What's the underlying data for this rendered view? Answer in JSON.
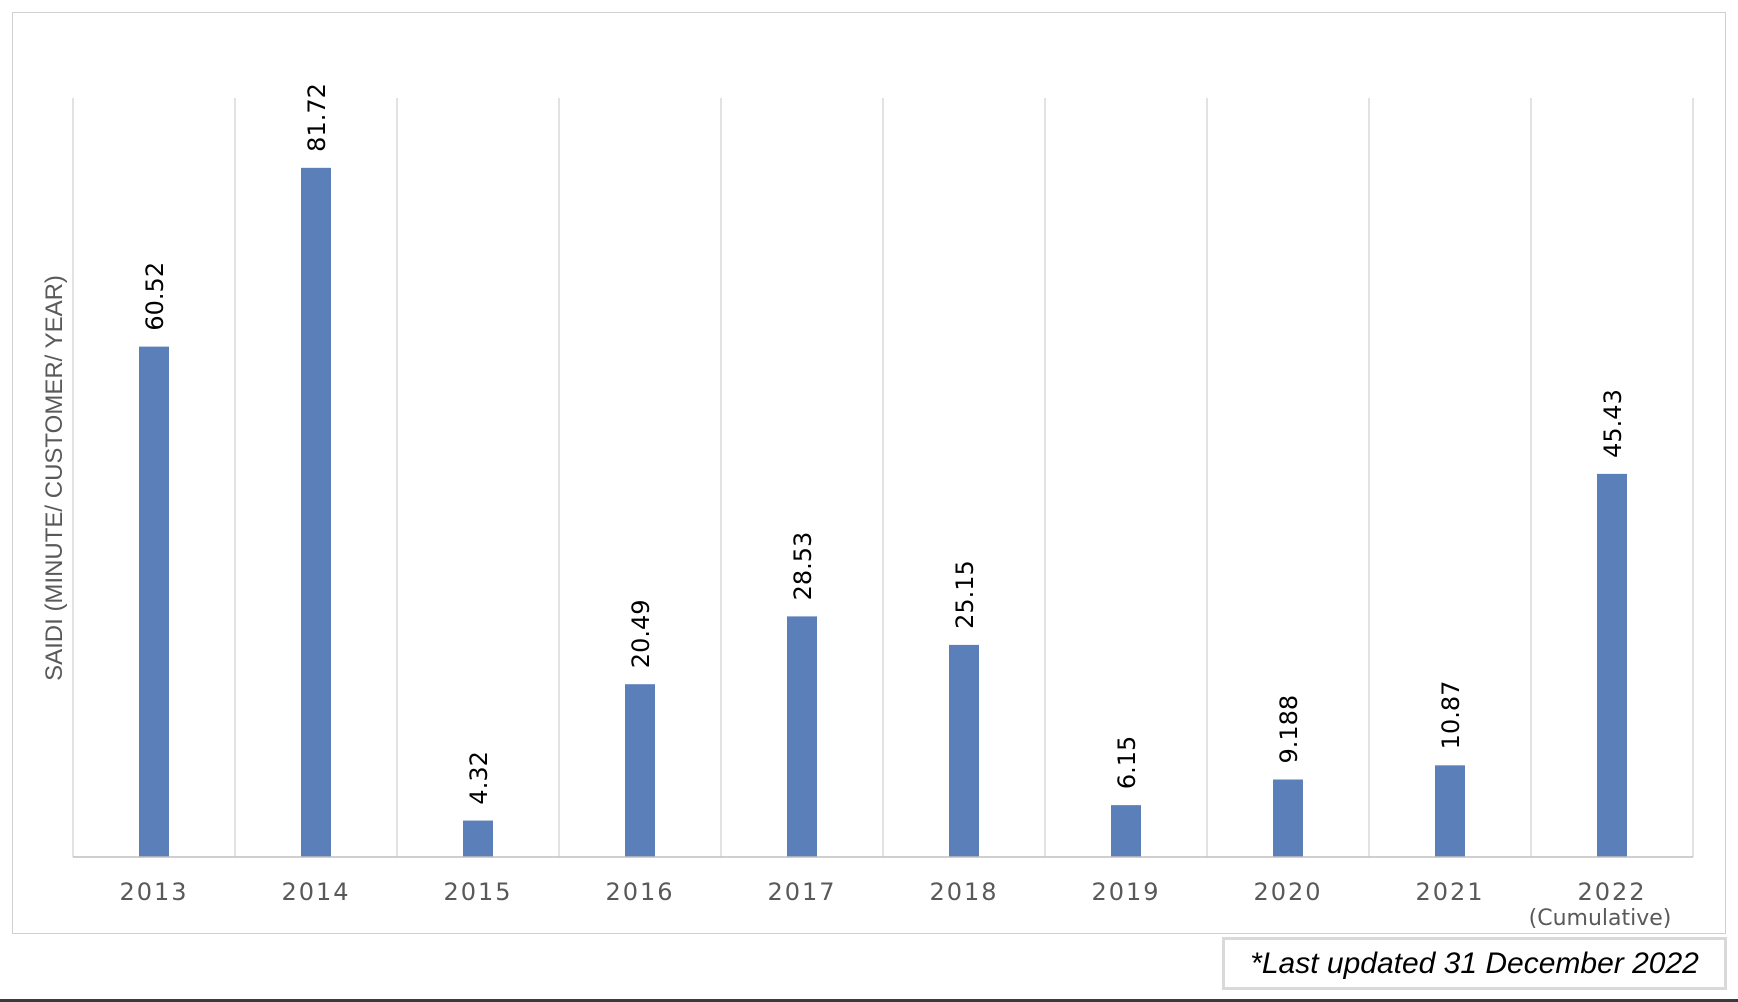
{
  "chart_data": {
    "type": "bar",
    "categories": [
      "2013",
      "2014",
      "2015",
      "2016",
      "2017",
      "2018",
      "2019",
      "2020",
      "2021",
      "2022"
    ],
    "category_sublabels": [
      "",
      "",
      "",
      "",
      "",
      "",
      "",
      "",
      "",
      "(Cumulative)"
    ],
    "values": [
      60.52,
      81.72,
      4.32,
      20.49,
      28.53,
      25.15,
      6.15,
      9.188,
      10.87,
      45.43
    ],
    "data_labels": [
      "60.52",
      "81.72",
      "4.32",
      "20.49",
      "28.53",
      "25.15",
      "6.15",
      "9.188",
      "10.87",
      "45.43"
    ],
    "ylabel": "SAIDI (MINUTE/ CUSTOMER/ YEAR)",
    "xlabel": "",
    "title": "",
    "ylim": [
      0,
      90
    ],
    "grid": "vertical separators",
    "legend": "none",
    "bar_color": "#5b7fb8",
    "grid_color": "#d9d9d9",
    "axis_color": "#bfbfbf"
  },
  "footnote": "*Last updated 31 December 2022"
}
